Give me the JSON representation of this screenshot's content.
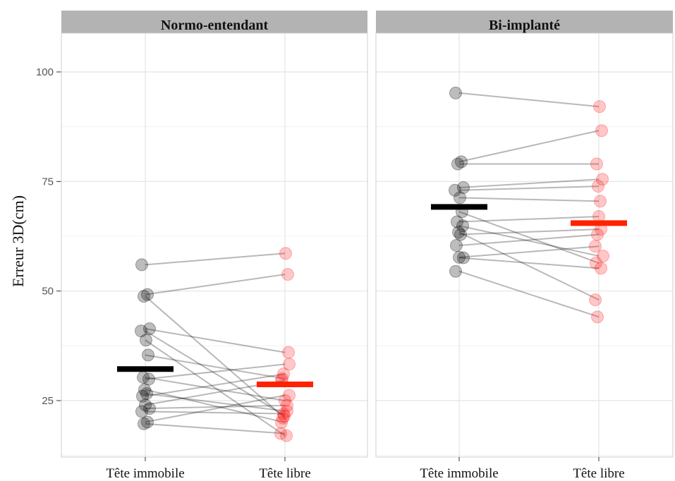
{
  "chart_data": {
    "type": "scatter",
    "ylabel": "Erreur 3D(cm)",
    "yticks": [
      25,
      50,
      75,
      100
    ],
    "ylim": [
      13,
      109
    ],
    "conditions": [
      "Tête immobile",
      "Tête libre"
    ],
    "condition_colors": [
      "#000000",
      "#ff0000"
    ],
    "mean_colors": [
      "#000000",
      "#ff2200"
    ],
    "grid": true,
    "panels": [
      {
        "title": "Normo-entendant",
        "means": [
          32.2,
          28.7
        ],
        "pairs": [
          [
            56.0,
            58.6
          ],
          [
            49.2,
            53.8
          ],
          [
            48.8,
            21.0
          ],
          [
            41.4,
            36.0
          ],
          [
            40.9,
            21.5
          ],
          [
            38.8,
            17.0
          ],
          [
            35.4,
            30.0
          ],
          [
            30.3,
            25.0
          ],
          [
            29.9,
            33.3
          ],
          [
            27.5,
            20.0
          ],
          [
            26.6,
            22.6
          ],
          [
            26.0,
            31.1
          ],
          [
            24.0,
            29.6
          ],
          [
            23.2,
            23.9
          ],
          [
            22.5,
            22.0
          ],
          [
            20.1,
            26.2
          ],
          [
            19.7,
            17.5
          ]
        ]
      },
      {
        "title": "Bi-implanté",
        "means": [
          69.2,
          65.5
        ],
        "pairs": [
          [
            95.2,
            92.1
          ],
          [
            79.5,
            86.6
          ],
          [
            79.0,
            79.0
          ],
          [
            73.6,
            75.5
          ],
          [
            73.0,
            73.9
          ],
          [
            71.3,
            70.5
          ],
          [
            68.1,
            56.4
          ],
          [
            65.8,
            67.0
          ],
          [
            64.9,
            58.0
          ],
          [
            63.4,
            48.0
          ],
          [
            62.9,
            64.1
          ],
          [
            60.4,
            62.9
          ],
          [
            57.7,
            60.2
          ],
          [
            57.6,
            55.2
          ],
          [
            54.5,
            44.1
          ]
        ]
      }
    ]
  }
}
